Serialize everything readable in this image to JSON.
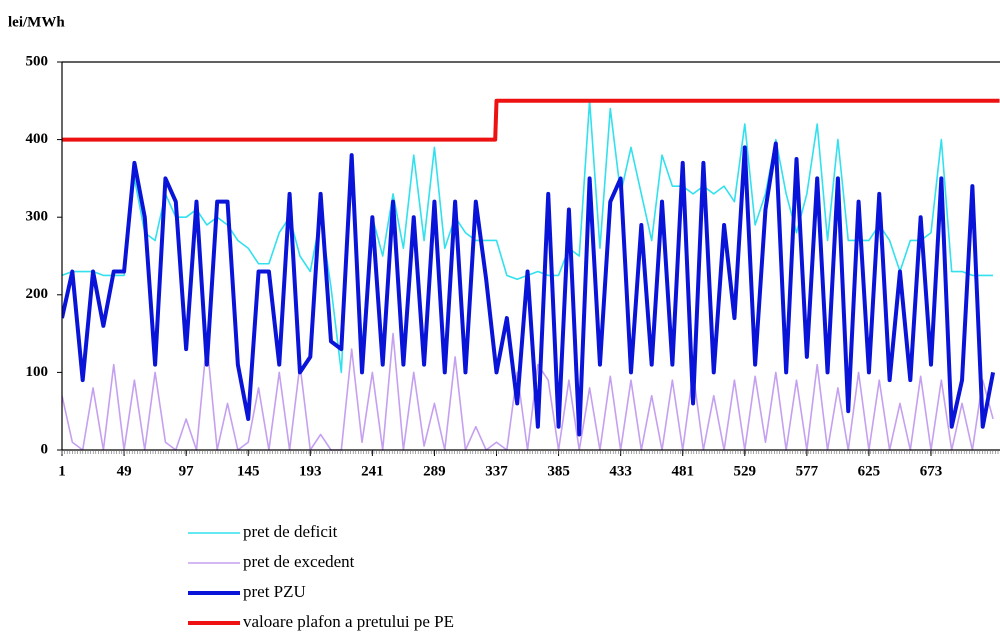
{
  "chart_data": {
    "type": "line",
    "title": "lei/MWh",
    "x": [
      1,
      9,
      17,
      25,
      33,
      41,
      49,
      57,
      65,
      73,
      81,
      89,
      97,
      105,
      113,
      121,
      129,
      137,
      145,
      153,
      161,
      169,
      177,
      185,
      193,
      201,
      209,
      217,
      225,
      233,
      241,
      249,
      257,
      265,
      273,
      281,
      289,
      297,
      305,
      313,
      321,
      329,
      337,
      345,
      353,
      361,
      369,
      377,
      385,
      393,
      401,
      409,
      417,
      425,
      433,
      441,
      449,
      457,
      465,
      473,
      481,
      489,
      497,
      505,
      513,
      521,
      529,
      537,
      545,
      553,
      561,
      569,
      577,
      585,
      593,
      601,
      609,
      617,
      625,
      633,
      641,
      649,
      657,
      665,
      673,
      681,
      689,
      697,
      705,
      713,
      721
    ],
    "xlim": [
      1,
      726
    ],
    "xticks": [
      1,
      49,
      97,
      145,
      193,
      241,
      289,
      337,
      385,
      433,
      481,
      529,
      577,
      625,
      673
    ],
    "ylim": [
      0,
      500
    ],
    "yticks": [
      0,
      100,
      200,
      300,
      400,
      500
    ],
    "series": [
      {
        "name": "pret de deficit",
        "color": "#33e0ee",
        "width": 1.6,
        "values": [
          225,
          230,
          230,
          230,
          225,
          225,
          225,
          350,
          280,
          270,
          330,
          300,
          300,
          310,
          290,
          300,
          290,
          270,
          260,
          240,
          240,
          280,
          300,
          250,
          230,
          300,
          210,
          100,
          380,
          130,
          300,
          250,
          330,
          260,
          380,
          270,
          390,
          260,
          300,
          280,
          270,
          270,
          270,
          225,
          220,
          225,
          230,
          225,
          225,
          260,
          250,
          450,
          260,
          440,
          330,
          390,
          330,
          270,
          380,
          340,
          340,
          330,
          340,
          330,
          340,
          320,
          420,
          290,
          330,
          400,
          330,
          280,
          330,
          420,
          270,
          400,
          270,
          270,
          270,
          290,
          270,
          230,
          270,
          270,
          280,
          400,
          230,
          230,
          225,
          225,
          225
        ]
      },
      {
        "name": "pret de excedent",
        "color": "#c6a0f0",
        "width": 1.6,
        "values": [
          70,
          10,
          0,
          80,
          0,
          110,
          0,
          90,
          0,
          100,
          10,
          0,
          40,
          0,
          140,
          0,
          60,
          0,
          10,
          80,
          0,
          100,
          0,
          110,
          0,
          20,
          0,
          0,
          130,
          10,
          100,
          0,
          150,
          0,
          100,
          5,
          60,
          0,
          120,
          0,
          30,
          0,
          10,
          0,
          100,
          0,
          110,
          90,
          0,
          90,
          0,
          80,
          0,
          95,
          0,
          90,
          0,
          70,
          0,
          90,
          0,
          100,
          0,
          70,
          0,
          90,
          0,
          95,
          10,
          100,
          0,
          90,
          0,
          110,
          0,
          80,
          0,
          100,
          0,
          90,
          0,
          60,
          0,
          95,
          0,
          90,
          0,
          60,
          0,
          90,
          40
        ]
      },
      {
        "name": "pret PZU",
        "color": "#0a14d8",
        "width": 4,
        "values": [
          170,
          230,
          90,
          230,
          160,
          230,
          230,
          370,
          300,
          110,
          350,
          320,
          130,
          320,
          110,
          320,
          320,
          110,
          40,
          230,
          230,
          110,
          330,
          100,
          120,
          330,
          140,
          130,
          380,
          100,
          300,
          110,
          320,
          110,
          300,
          110,
          320,
          100,
          320,
          100,
          320,
          220,
          100,
          170,
          60,
          230,
          30,
          330,
          30,
          310,
          20,
          350,
          110,
          320,
          350,
          100,
          290,
          110,
          320,
          110,
          370,
          60,
          370,
          100,
          290,
          170,
          390,
          110,
          310,
          395,
          100,
          375,
          120,
          350,
          100,
          350,
          50,
          320,
          100,
          330,
          90,
          230,
          90,
          300,
          110,
          350,
          30,
          90,
          340,
          30,
          100
        ]
      },
      {
        "name": "valoare plafon a pretului pe PE",
        "color": "#ee1111",
        "width": 4,
        "x": [
          1,
          336,
          337,
          726
        ],
        "values": [
          400,
          400,
          450,
          450
        ]
      }
    ]
  }
}
